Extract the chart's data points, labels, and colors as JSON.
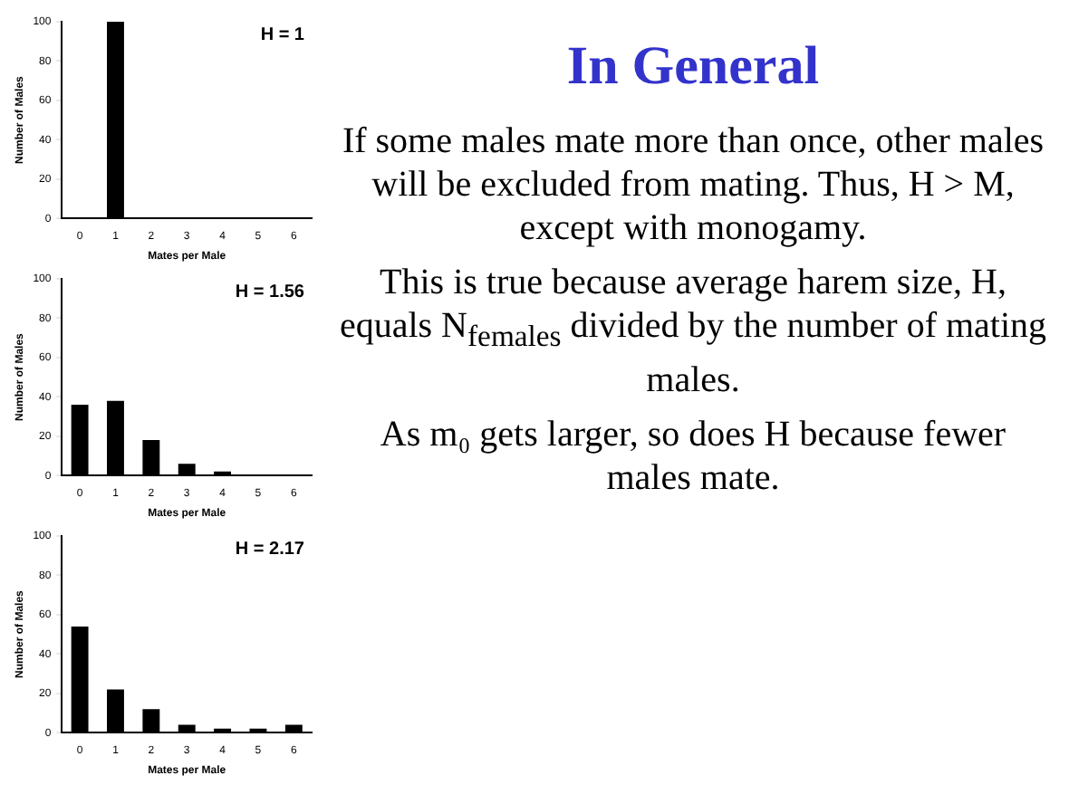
{
  "chart_data": [
    {
      "type": "bar",
      "categories": [
        "0",
        "1",
        "2",
        "3",
        "4",
        "5",
        "6"
      ],
      "values": [
        0,
        100,
        0,
        0,
        0,
        0,
        0
      ],
      "color": "#000000",
      "xlabel": "Mates per Male",
      "ylabel": "Number of Males",
      "ylim": [
        0,
        100
      ],
      "yticks": [
        0,
        20,
        40,
        60,
        80,
        100
      ],
      "annotations": [
        "H = 1"
      ],
      "grid": false
    },
    {
      "type": "bar",
      "categories": [
        "0",
        "1",
        "2",
        "3",
        "4",
        "5",
        "6"
      ],
      "values": [
        36,
        38,
        18,
        6,
        2,
        0,
        0
      ],
      "color": "#000000",
      "xlabel": "Mates per Male",
      "ylabel": "Number of Males",
      "ylim": [
        0,
        100
      ],
      "yticks": [
        0,
        20,
        40,
        60,
        80,
        100
      ],
      "annotations": [
        "H = 1.56"
      ],
      "grid": false
    },
    {
      "type": "bar",
      "categories": [
        "0",
        "1",
        "2",
        "3",
        "4",
        "5",
        "6"
      ],
      "values": [
        54,
        22,
        12,
        4,
        2,
        2,
        4
      ],
      "color": "#000000",
      "xlabel": "Mates per Male",
      "ylabel": "Number of Males",
      "ylim": [
        0,
        100
      ],
      "yticks": [
        0,
        20,
        40,
        60,
        80,
        100
      ],
      "annotations": [
        "H = 2.17"
      ],
      "grid": false
    },
    {
      "type": "other",
      "title": "In General",
      "annotations": [
        "If some males mate more than once, other males will be excluded from mating. Thus, H > M, except with monogamy.",
        "This is true because average harem size, H, equals N$_{females}$ divided by the number of mating males.",
        "As m₀ gets larger, so does H because fewer males mate."
      ]
    }
  ]
}
